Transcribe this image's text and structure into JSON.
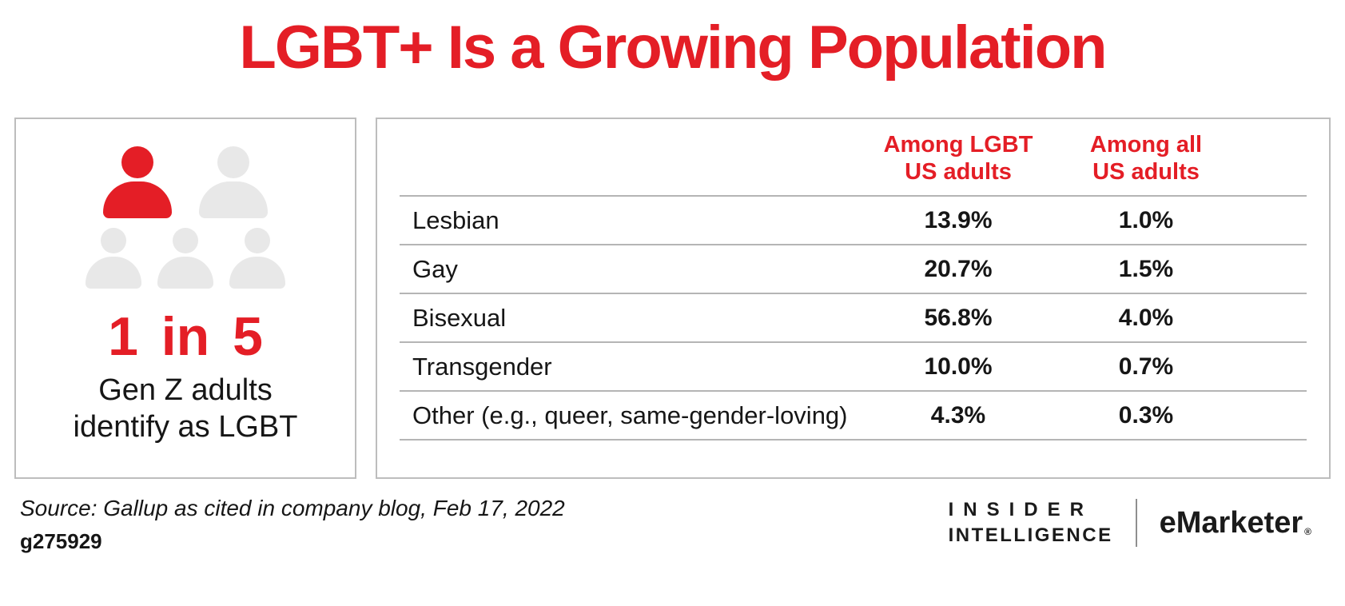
{
  "title": "LGBT+ Is a Growing Population",
  "colors": {
    "accent": "#e41e26",
    "icon_gray": "#e8e8e8",
    "line_gray": "#b5b5b5",
    "border_gray": "#bdbdbd",
    "text_dark": "#161616"
  },
  "stat": {
    "value": "1 in 5",
    "line1": "Gen Z adults",
    "line2": "identify as LGBT"
  },
  "chart_data": {
    "type": "table",
    "title": "LGBT+ Is a Growing Population",
    "categories": [
      "Lesbian",
      "Gay",
      "Bisexual",
      "Transgender",
      "Other (e.g., queer, same-gender-loving)"
    ],
    "series": [
      {
        "name": "Among LGBT US adults",
        "values": [
          13.9,
          20.7,
          56.8,
          10.0,
          4.3
        ]
      },
      {
        "name": "Among all US adults",
        "values": [
          1.0,
          1.5,
          4.0,
          0.7,
          0.3
        ]
      }
    ],
    "column_headers": [
      [
        "Among LGBT",
        "US adults"
      ],
      [
        "Among all",
        "US adults"
      ]
    ],
    "rows": [
      {
        "label": "Lesbian",
        "among_lgbt": "13.9%",
        "among_all": "1.0%"
      },
      {
        "label": "Gay",
        "among_lgbt": "20.7%",
        "among_all": "1.5%"
      },
      {
        "label": "Bisexual",
        "among_lgbt": "56.8%",
        "among_all": "4.0%"
      },
      {
        "label": "Transgender",
        "among_lgbt": "10.0%",
        "among_all": "0.7%"
      },
      {
        "label": "Other (e.g., queer, same-gender-loving)",
        "among_lgbt": "4.3%",
        "among_all": "0.3%"
      }
    ]
  },
  "footer": {
    "source": "Source: Gallup as cited in company blog, Feb 17, 2022",
    "chart_id": "g275929",
    "insider_line1": "INSIDER",
    "insider_line2": "INTELLIGENCE",
    "emarketer": "eMarketer",
    "reg_mark": "®"
  }
}
